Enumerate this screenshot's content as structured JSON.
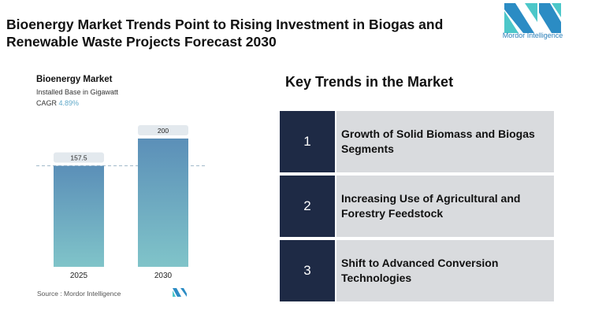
{
  "title": "Bioenergy Market Trends Point to Rising Investment in Biogas and Renewable Waste Projects Forecast 2030",
  "logo": {
    "text": "Mordor Intelligence"
  },
  "chart_data": {
    "type": "bar",
    "title": "Bioenergy Market",
    "subtitle": "Installed Base in Gigawatt",
    "cagr_label": "CAGR",
    "cagr_value": "4.89%",
    "categories": [
      "2025",
      "2030"
    ],
    "values": [
      157.5,
      200
    ],
    "value_labels": [
      "157.5",
      "200"
    ],
    "reference_line": 157.5,
    "colors": {
      "top": "#5b8fb8",
      "bottom": "#80c4c9"
    },
    "source": "Source :  Mordor Intelligence"
  },
  "trends": {
    "heading": "Key Trends in the Market",
    "items": [
      {
        "num": "1",
        "text": "Growth of Solid Biomass and Biogas Segments"
      },
      {
        "num": "2",
        "text": "Increasing Use of Agricultural and Forestry Feedstock"
      },
      {
        "num": "3",
        "text": "Shift to Advanced Conversion Technologies"
      }
    ]
  }
}
